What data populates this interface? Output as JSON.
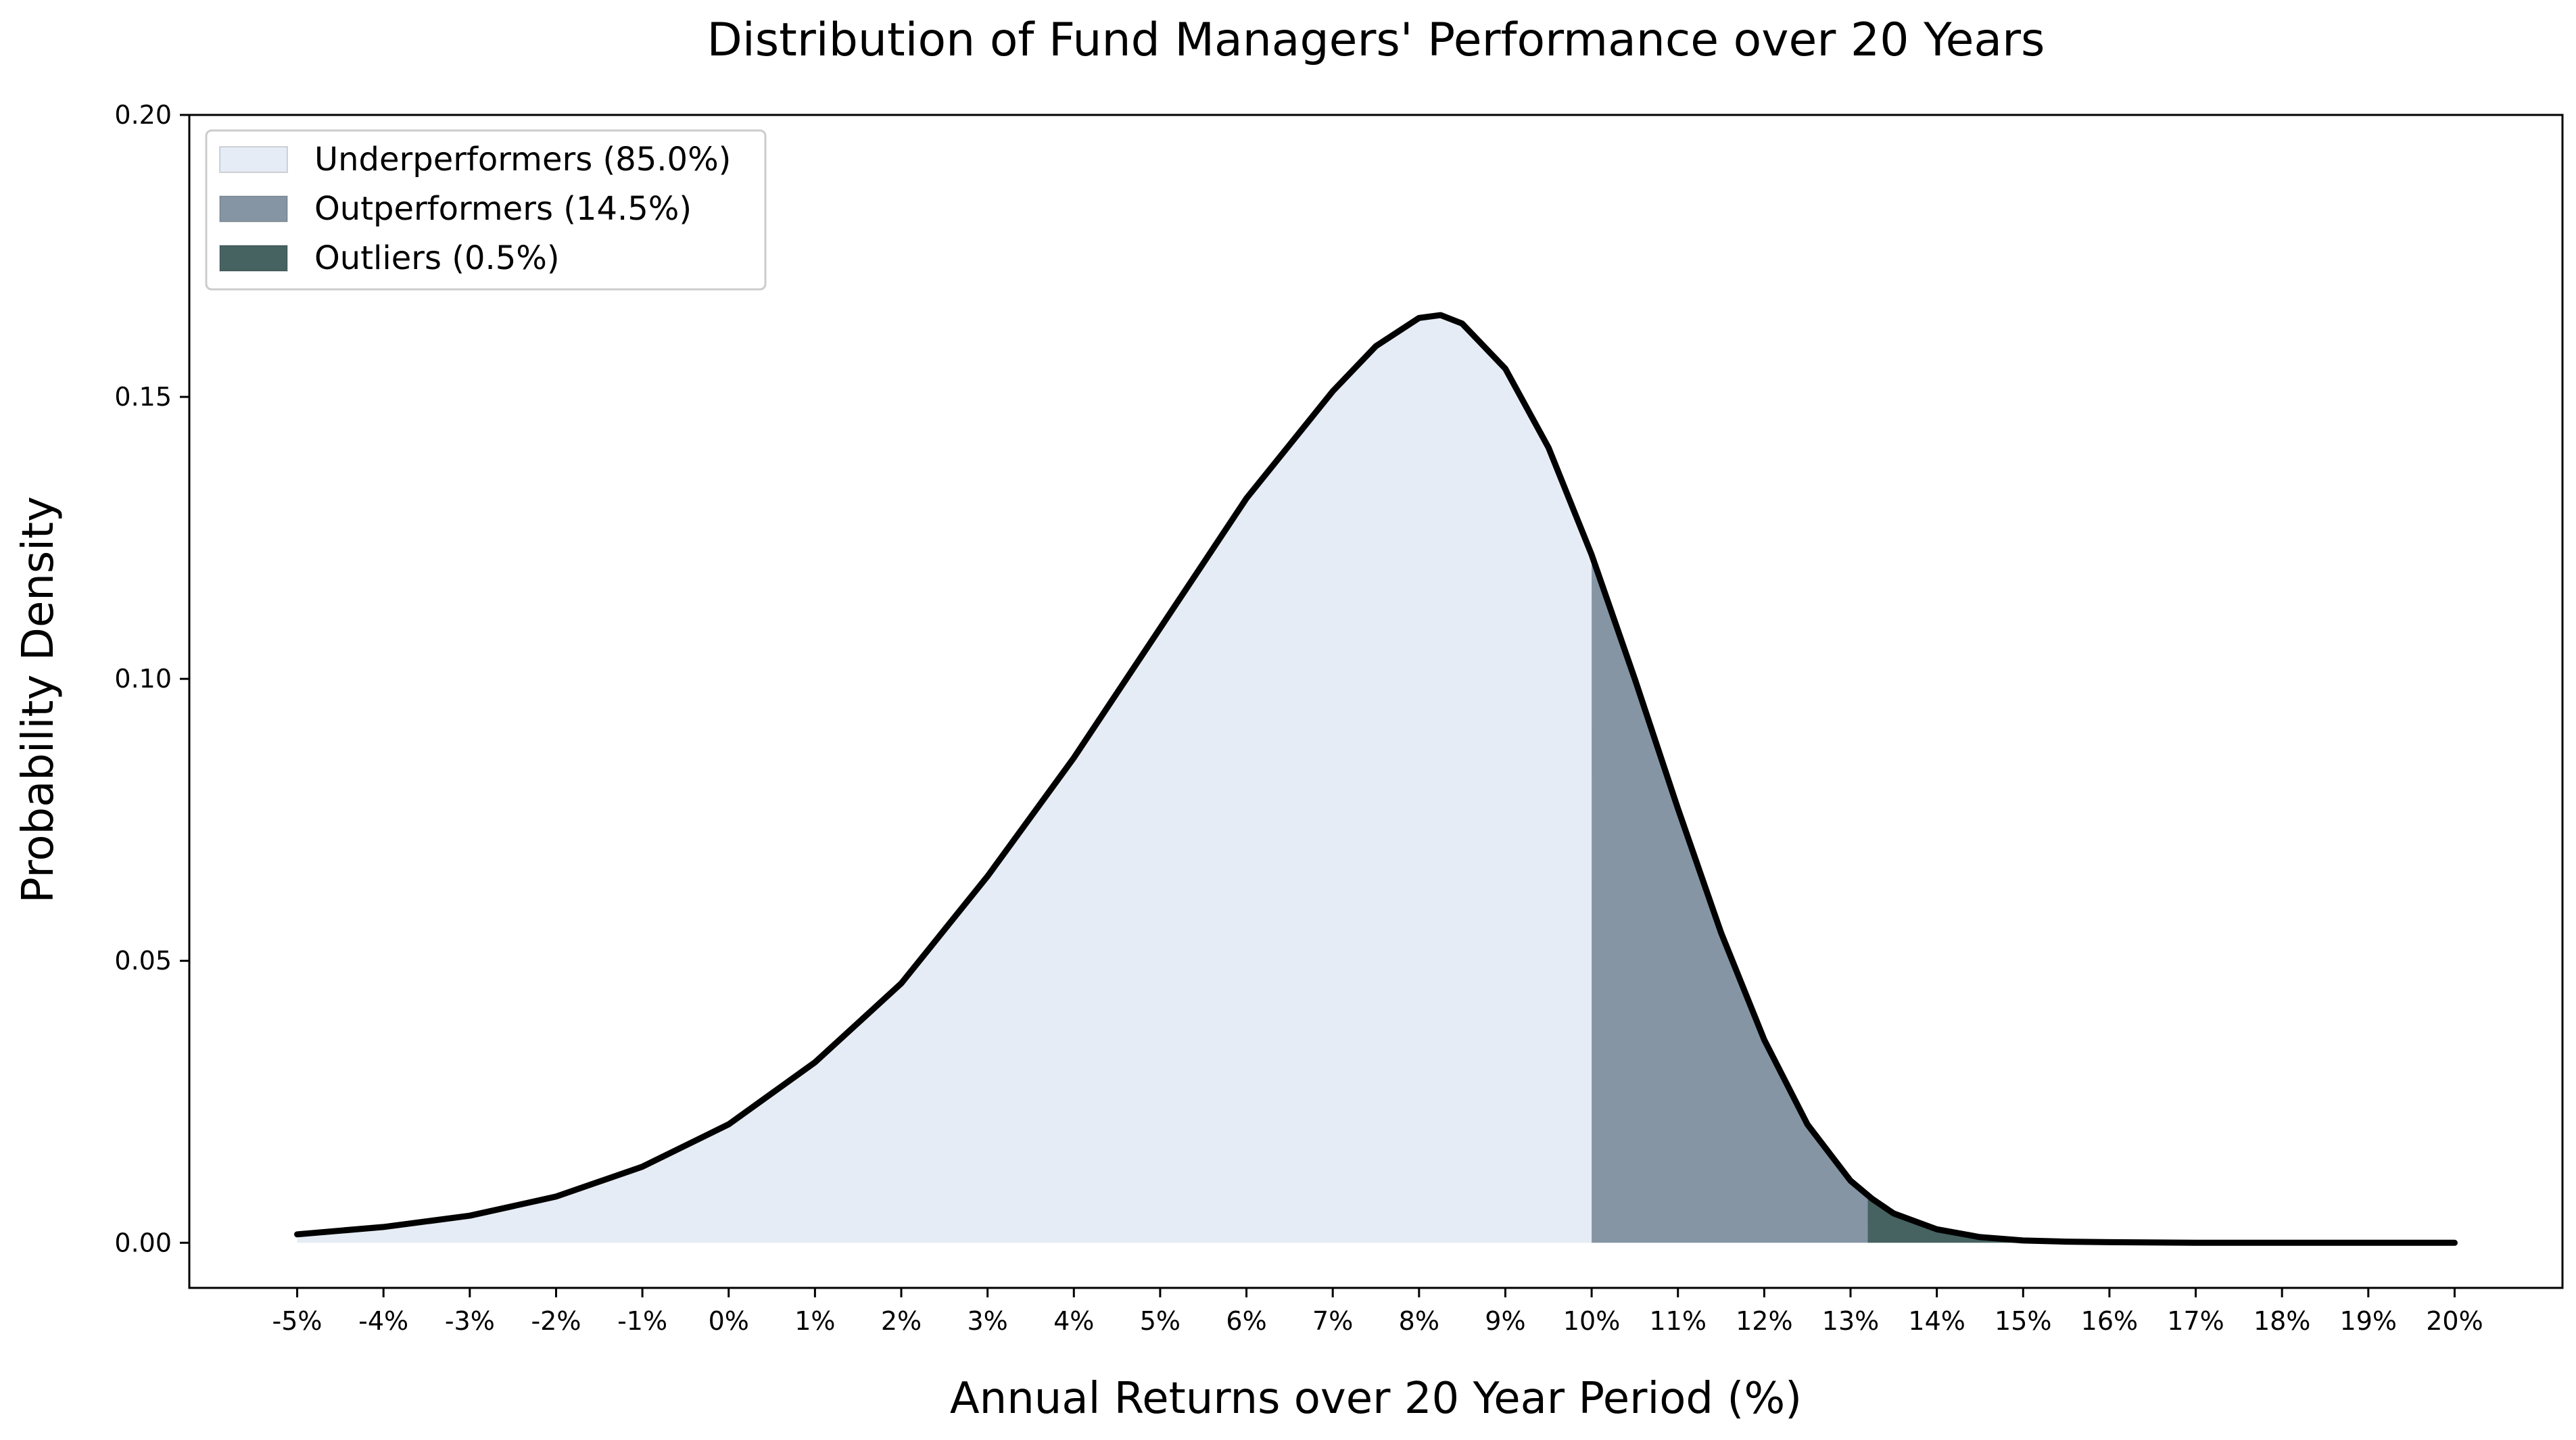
{
  "chart_data": {
    "type": "area",
    "title": "Distribution of Fund Managers' Performance over 20 Years",
    "xlabel": "Annual Returns over 20 Year Period (%)",
    "ylabel": "Probability Density",
    "xlim": [
      -6.25,
      21.25
    ],
    "ylim": [
      -0.008,
      0.2
    ],
    "x_ticks": [
      -5,
      -4,
      -3,
      -2,
      -1,
      0,
      1,
      2,
      3,
      4,
      5,
      6,
      7,
      8,
      9,
      10,
      11,
      12,
      13,
      14,
      15,
      16,
      17,
      18,
      19,
      20
    ],
    "x_tick_labels": [
      "-5%",
      "-4%",
      "-3%",
      "-2%",
      "-1%",
      "0%",
      "1%",
      "2%",
      "3%",
      "4%",
      "5%",
      "6%",
      "7%",
      "8%",
      "9%",
      "10%",
      "11%",
      "12%",
      "13%",
      "14%",
      "15%",
      "16%",
      "17%",
      "18%",
      "19%",
      "20%"
    ],
    "y_ticks": [
      0.0,
      0.05,
      0.1,
      0.15,
      0.2
    ],
    "y_tick_labels": [
      "0.00",
      "0.05",
      "0.10",
      "0.15",
      "0.20"
    ],
    "grid": false,
    "legend_position": "top-left",
    "curve": {
      "x": [
        -5,
        -4,
        -3,
        -2,
        -1,
        0,
        1,
        2,
        3,
        4,
        5,
        6,
        7,
        7.5,
        8,
        8.25,
        8.5,
        9,
        9.5,
        10,
        10.5,
        11,
        11.5,
        12,
        12.5,
        13,
        13.25,
        13.5,
        14,
        14.5,
        15,
        15.5,
        16,
        17,
        18,
        19,
        20
      ],
      "y": [
        0.0015,
        0.0028,
        0.0048,
        0.0082,
        0.0135,
        0.021,
        0.032,
        0.046,
        0.065,
        0.086,
        0.109,
        0.132,
        0.151,
        0.159,
        0.164,
        0.1645,
        0.163,
        0.155,
        0.141,
        0.122,
        0.1,
        0.077,
        0.055,
        0.036,
        0.021,
        0.011,
        0.0078,
        0.0052,
        0.0024,
        0.001,
        0.0004,
        0.0002,
        0.0001,
        0.0,
        0.0,
        0.0,
        0.0
      ]
    },
    "series": [
      {
        "name": "Underperformers (85.0%)",
        "x_range": [
          -5,
          10
        ],
        "color": "#e6ecf5"
      },
      {
        "name": "Outperformers (14.5%)",
        "x_range": [
          10,
          13.2
        ],
        "color": "#8595a4"
      },
      {
        "name": "Outliers (0.5%)",
        "x_range": [
          13.2,
          20
        ],
        "color": "#466261"
      }
    ]
  }
}
